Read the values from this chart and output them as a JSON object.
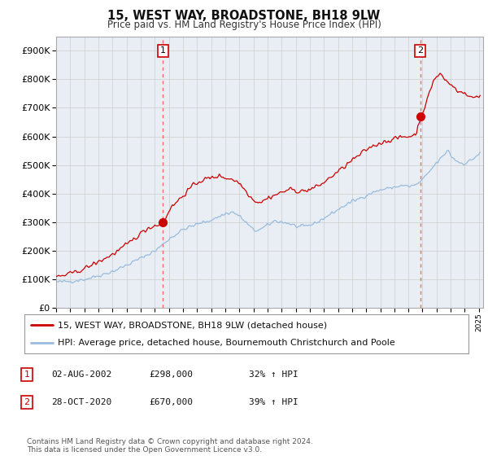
{
  "title": "15, WEST WAY, BROADSTONE, BH18 9LW",
  "subtitle": "Price paid vs. HM Land Registry's House Price Index (HPI)",
  "ylim": [
    0,
    950000
  ],
  "xlim_start": 1995.0,
  "xlim_end": 2025.3,
  "red_line_color": "#CC0000",
  "blue_line_color": "#99BBDD",
  "plot_bg_color": "#E8EEF4",
  "marker1_x": 2002.58,
  "marker1_y": 298000,
  "marker2_x": 2020.83,
  "marker2_y": 670000,
  "legend_line1": "15, WEST WAY, BROADSTONE, BH18 9LW (detached house)",
  "legend_line2": "HPI: Average price, detached house, Bournemouth Christchurch and Poole",
  "table_row1": [
    "1",
    "02-AUG-2002",
    "£298,000",
    "32% ↑ HPI"
  ],
  "table_row2": [
    "2",
    "28-OCT-2020",
    "£670,000",
    "39% ↑ HPI"
  ],
  "footer": "Contains HM Land Registry data © Crown copyright and database right 2024.\nThis data is licensed under the Open Government Licence v3.0.",
  "background_color": "#FFFFFF",
  "grid_color": "#CCCCCC"
}
